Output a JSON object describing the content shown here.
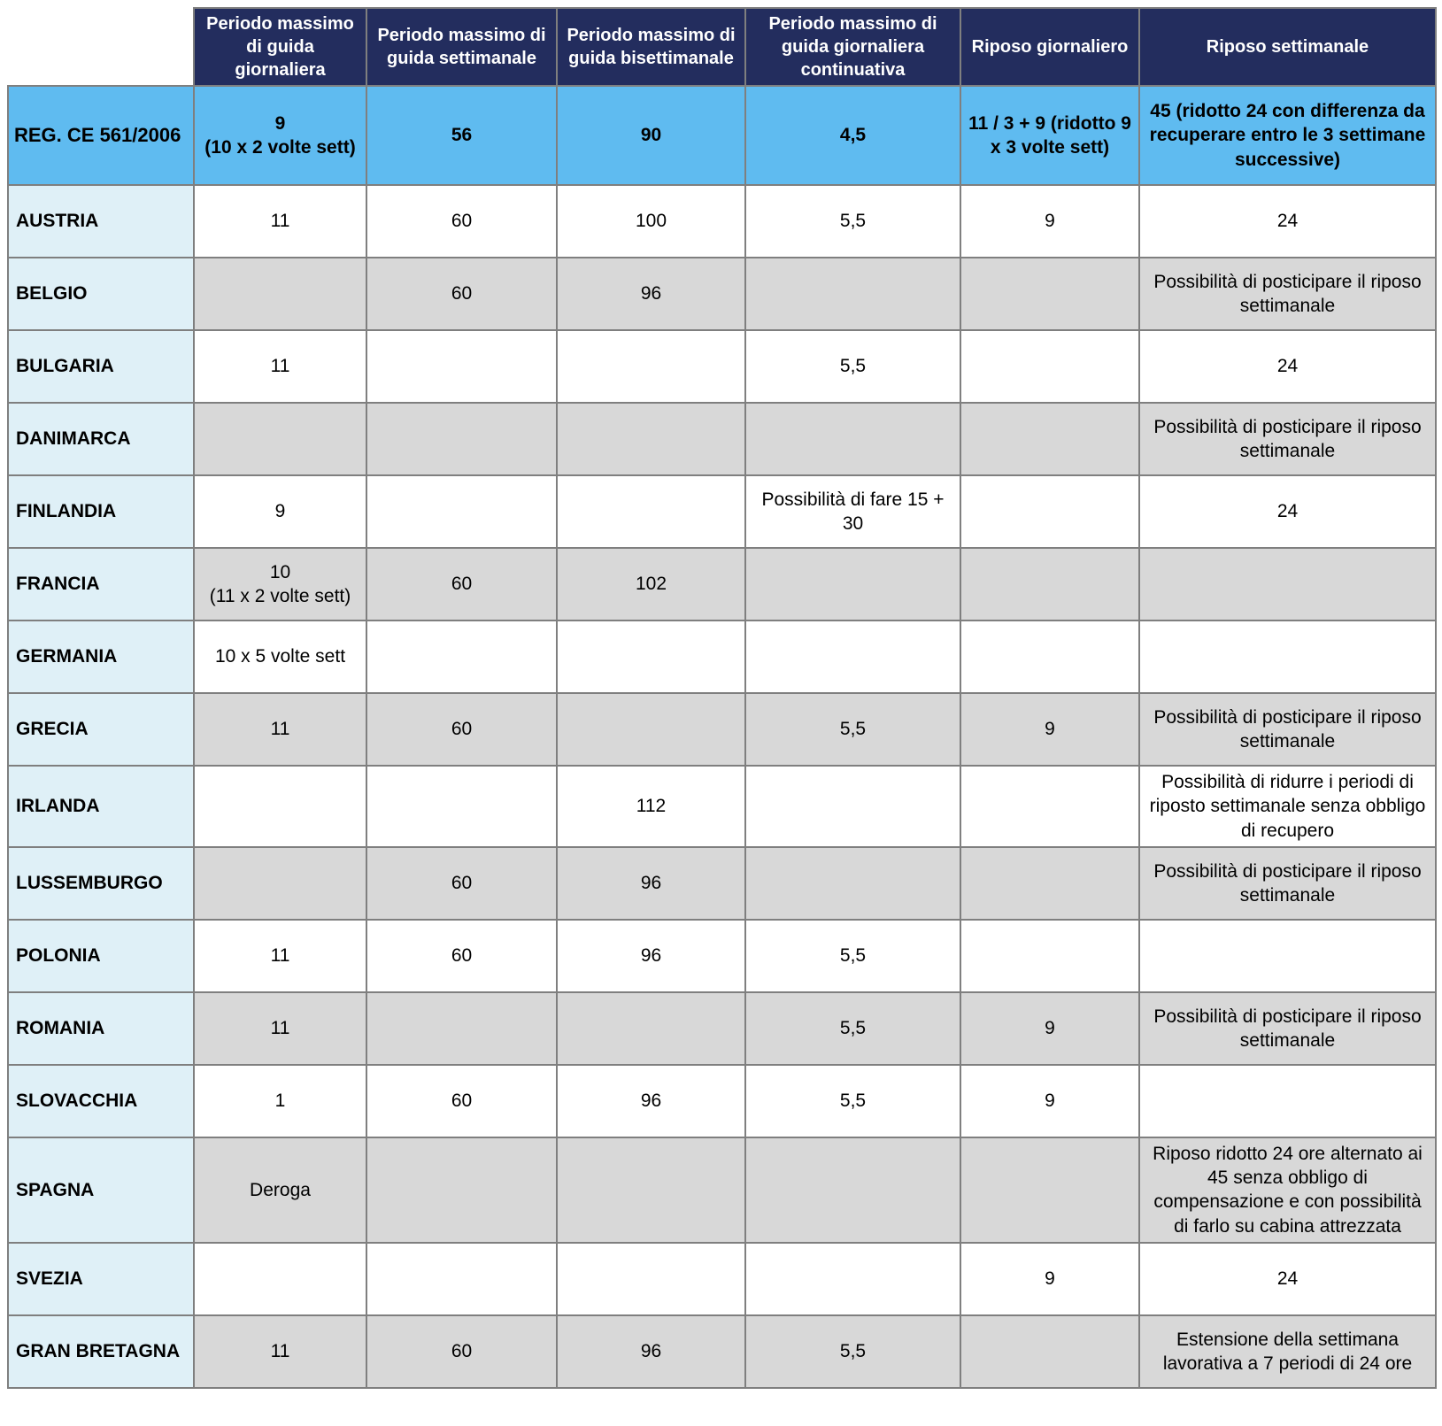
{
  "colors": {
    "header_bg": "#232D5E",
    "header_text": "#FFFFFF",
    "regulation_row_bg": "#5FBBF0",
    "country_column_bg": "#DFF0F7",
    "alt_row_bg": "#D8D8D8",
    "row_bg": "#FFFFFF",
    "border": "#7F7F7F",
    "body_text": "#000000"
  },
  "chart_data": {
    "type": "table",
    "title": "",
    "columns": [
      "",
      "Periodo massimo di guida giornaliera",
      "Periodo massimo di guida settimanale",
      "Periodo massimo di guida bisettimanale",
      "Periodo massimo di guida giornaliera continuativa",
      "Riposo giornaliero",
      "Riposo settimanale"
    ],
    "reg_row": {
      "label": "REG. CE 561/2006",
      "cells": [
        "9\n(10 x 2 volte sett)",
        "56",
        "90",
        "4,5",
        "11 / 3 + 9 (ridotto 9 x 3 volte sett)",
        "45 (ridotto 24 con differenza da recuperare entro le 3 settimane successive)"
      ]
    },
    "rows": [
      {
        "country": "AUSTRIA",
        "shade": "white",
        "cells": [
          "11",
          "60",
          "100",
          "5,5",
          "9",
          "24"
        ]
      },
      {
        "country": "BELGIO",
        "shade": "gray",
        "cells": [
          "",
          "60",
          "96",
          "",
          "",
          "Possibilità di posticipare il riposo settimanale"
        ]
      },
      {
        "country": "BULGARIA",
        "shade": "white",
        "cells": [
          "11",
          "",
          "",
          "5,5",
          "",
          "24"
        ]
      },
      {
        "country": "DANIMARCA",
        "shade": "gray",
        "cells": [
          "",
          "",
          "",
          "",
          "",
          "Possibilità di posticipare il riposo settimanale"
        ]
      },
      {
        "country": "FINLANDIA",
        "shade": "white",
        "cells": [
          "9",
          "",
          "",
          "Possibilità di fare 15 + 30",
          "",
          "24"
        ]
      },
      {
        "country": "FRANCIA",
        "shade": "gray",
        "cells": [
          "10\n(11 x 2 volte sett)",
          "60",
          "102",
          "",
          "",
          ""
        ]
      },
      {
        "country": "GERMANIA",
        "shade": "white",
        "cells": [
          "10 x 5 volte sett",
          "",
          "",
          "",
          "",
          ""
        ]
      },
      {
        "country": "GRECIA",
        "shade": "gray",
        "cells": [
          "11",
          "60",
          "",
          "5,5",
          "9",
          "Possibilità di posticipare il riposo settimanale"
        ]
      },
      {
        "country": "IRLANDA",
        "shade": "white",
        "cells": [
          "",
          "",
          "112",
          "",
          "",
          "Possibilità di ridurre i periodi di riposto settimanale senza obbligo di recupero"
        ]
      },
      {
        "country": "LUSSEMBURGO",
        "shade": "gray",
        "cells": [
          "",
          "60",
          "96",
          "",
          "",
          "Possibilità di posticipare il riposo settimanale"
        ]
      },
      {
        "country": "POLONIA",
        "shade": "white",
        "cells": [
          "11",
          "60",
          "96",
          "5,5",
          "",
          ""
        ]
      },
      {
        "country": "ROMANIA",
        "shade": "gray",
        "cells": [
          "11",
          "",
          "",
          "5,5",
          "9",
          "Possibilità di posticipare il riposo settimanale"
        ]
      },
      {
        "country": "SLOVACCHIA",
        "shade": "white",
        "cells": [
          "1",
          "60",
          "96",
          "5,5",
          "9",
          ""
        ]
      },
      {
        "country": "SPAGNA",
        "shade": "gray",
        "cells": [
          "Deroga",
          "",
          "",
          "",
          "",
          "Riposo ridotto 24 ore alternato ai 45 senza obbligo di compensazione e con possibilità di farlo su cabina attrezzata"
        ]
      },
      {
        "country": "SVEZIA",
        "shade": "white",
        "cells": [
          "",
          "",
          "",
          "",
          "9",
          "24"
        ]
      },
      {
        "country": "GRAN BRETAGNA",
        "shade": "gray",
        "cells": [
          "11",
          "60",
          "96",
          "5,5",
          "",
          "Estensione della settimana lavorativa a 7 periodi di 24 ore"
        ]
      }
    ]
  }
}
